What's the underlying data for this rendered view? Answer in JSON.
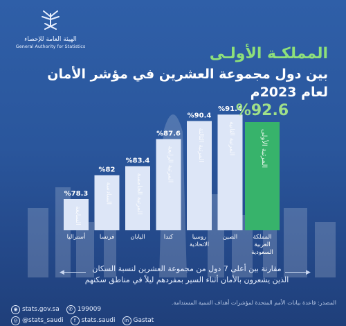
{
  "header": {
    "logo_ar": "الهيئة العامة للإحصاء",
    "logo_en": "General Authority for Statistics",
    "title_line1": "المملكـة الأولـى",
    "title_line2": "بين دول مجموعة العشرين في مؤشر الأمان لعام 2023م"
  },
  "chart_data": {
    "type": "bar",
    "title": "",
    "xlabel": "",
    "ylabel": "",
    "categories": [
      "أستراليا",
      "فرنسا",
      "اليابان",
      "كندا",
      "روسيا الاتحادية",
      "الصين",
      "المملكة العربية السعودية"
    ],
    "values": [
      78.3,
      82,
      83.4,
      87.6,
      90.4,
      91.4,
      92.6
    ],
    "value_labels": [
      "%78.3",
      "%82",
      "%83.4",
      "%87.6",
      "%90.4",
      "%91.4",
      "%92.6"
    ],
    "rank_labels": [
      "السابعة",
      "السادسة",
      "المرتبة الخامسة",
      "المرتبة الرابعة",
      "المرتبة الثالثة",
      "المرتبة الثانية",
      "المرتبة الأولى"
    ],
    "highlight_index": 6,
    "colors": {
      "bar": "#dde6f7",
      "highlight": "#37b36b",
      "highlight_label": "#9fe089"
    }
  },
  "description": {
    "line1": "مقارنة بين أعلى 7 دول من مجموعة العشرين لنسبة السكان",
    "line2": "الذين يشعرون بالأمان أثناء السير بمفردهم ليلاً في مناطق سكنهم"
  },
  "source": "المصدر: قاعدة بيانات الأمم المتحدة لمؤشرات أهداف التنمية المستدامة.",
  "footer": {
    "website": "stats.gov.sa",
    "phone": "199009",
    "handle1": "@stats_saudi",
    "handle2": "stats.saudi",
    "handle3": "Gastat"
  }
}
